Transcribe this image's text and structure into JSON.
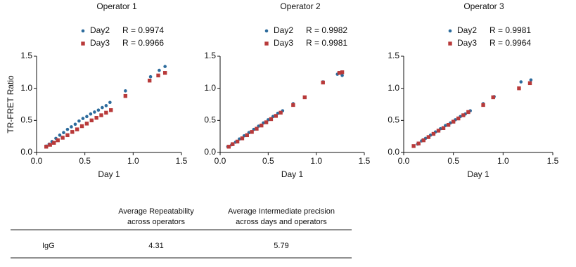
{
  "chart_data": [
    {
      "type": "scatter",
      "title": "Operator 1",
      "xlabel": "Day 1",
      "ylabel": "TR-FRET Ratio",
      "xlim": [
        0,
        1.5
      ],
      "ylim": [
        0,
        1.5
      ],
      "xticks": [
        {
          "value": 0,
          "label": "0.0"
        },
        {
          "value": 0.5,
          "label": "0.5"
        },
        {
          "value": 1,
          "label": "1.0"
        },
        {
          "value": 1.5,
          "label": "1.5"
        }
      ],
      "yticks": [
        {
          "value": 0,
          "label": "0.0"
        },
        {
          "value": 0.5,
          "label": "0.5"
        },
        {
          "value": 1,
          "label": "1.0"
        },
        {
          "value": 1.5,
          "label": "1.5"
        }
      ],
      "series": [
        {
          "name": "Day2",
          "annotation": "R = 0.9974",
          "color": "#2c6b9c",
          "marker": "circle",
          "x": [
            0.1,
            0.13,
            0.16,
            0.2,
            0.24,
            0.28,
            0.32,
            0.36,
            0.4,
            0.44,
            0.48,
            0.52,
            0.56,
            0.6,
            0.64,
            0.68,
            0.72,
            0.76,
            0.92,
            1.18,
            1.27,
            1.33
          ],
          "values": [
            0.1,
            0.13,
            0.17,
            0.22,
            0.27,
            0.31,
            0.36,
            0.4,
            0.44,
            0.49,
            0.53,
            0.56,
            0.6,
            0.63,
            0.66,
            0.7,
            0.73,
            0.78,
            0.96,
            1.18,
            1.28,
            1.34
          ]
        },
        {
          "name": "Day3",
          "annotation": "R = 0.9966",
          "color": "#b83a3a",
          "marker": "square",
          "x": [
            0.1,
            0.14,
            0.18,
            0.22,
            0.27,
            0.32,
            0.37,
            0.42,
            0.47,
            0.52,
            0.57,
            0.62,
            0.67,
            0.72,
            0.77,
            0.92,
            1.17,
            1.26,
            1.33
          ],
          "values": [
            0.09,
            0.12,
            0.15,
            0.19,
            0.23,
            0.27,
            0.32,
            0.36,
            0.41,
            0.45,
            0.5,
            0.54,
            0.58,
            0.62,
            0.66,
            0.88,
            1.12,
            1.2,
            1.24
          ]
        }
      ]
    },
    {
      "type": "scatter",
      "title": "Operator 2",
      "xlabel": "Day 1",
      "xlim": [
        0,
        1.5
      ],
      "ylim": [
        0,
        1.5
      ],
      "xticks": [
        {
          "value": 0,
          "label": "0.0"
        },
        {
          "value": 0.5,
          "label": "0.5"
        },
        {
          "value": 1,
          "label": "1.0"
        },
        {
          "value": 1.5,
          "label": "1.5"
        }
      ],
      "yticks": [
        {
          "value": 0,
          "label": "0.0"
        },
        {
          "value": 0.5,
          "label": "0.5"
        },
        {
          "value": 1,
          "label": "1.0"
        },
        {
          "value": 1.5,
          "label": "1.5"
        }
      ],
      "series": [
        {
          "name": "Day2",
          "annotation": "R = 0.9982",
          "color": "#2c6b9c",
          "marker": "circle",
          "x": [
            0.08,
            0.12,
            0.16,
            0.2,
            0.25,
            0.3,
            0.35,
            0.4,
            0.45,
            0.5,
            0.55,
            0.6,
            0.65,
            0.76,
            0.88,
            1.07,
            1.22,
            1.27
          ],
          "values": [
            0.09,
            0.12,
            0.16,
            0.21,
            0.26,
            0.31,
            0.36,
            0.41,
            0.46,
            0.51,
            0.56,
            0.61,
            0.65,
            0.76,
            0.86,
            1.1,
            1.22,
            1.2
          ]
        },
        {
          "name": "Day3",
          "annotation": "R = 0.9981",
          "color": "#b83a3a",
          "marker": "square",
          "x": [
            0.09,
            0.13,
            0.18,
            0.23,
            0.28,
            0.33,
            0.38,
            0.43,
            0.48,
            0.53,
            0.58,
            0.63,
            0.76,
            0.88,
            1.07,
            1.24,
            1.27
          ],
          "values": [
            0.09,
            0.13,
            0.17,
            0.22,
            0.27,
            0.32,
            0.37,
            0.42,
            0.47,
            0.52,
            0.57,
            0.62,
            0.74,
            0.86,
            1.09,
            1.24,
            1.25
          ]
        }
      ]
    },
    {
      "type": "scatter",
      "title": "Operator 3",
      "xlabel": "Day 1",
      "xlim": [
        0,
        1.5
      ],
      "ylim": [
        0,
        1.5
      ],
      "xticks": [
        {
          "value": 0,
          "label": "0.0"
        },
        {
          "value": 0.5,
          "label": "0.5"
        },
        {
          "value": 1,
          "label": "1.0"
        },
        {
          "value": 1.5,
          "label": "1.5"
        }
      ],
      "yticks": [
        {
          "value": 0,
          "label": "0.0"
        },
        {
          "value": 0.5,
          "label": "0.5"
        },
        {
          "value": 1,
          "label": "1.0"
        },
        {
          "value": 1.5,
          "label": "1.5"
        }
      ],
      "series": [
        {
          "name": "Day2",
          "annotation": "R = 0.9981",
          "color": "#2c6b9c",
          "marker": "circle",
          "x": [
            0.1,
            0.14,
            0.18,
            0.22,
            0.27,
            0.32,
            0.37,
            0.42,
            0.47,
            0.52,
            0.57,
            0.62,
            0.67,
            0.8,
            0.91,
            1.18,
            1.28
          ],
          "values": [
            0.1,
            0.13,
            0.18,
            0.22,
            0.27,
            0.32,
            0.37,
            0.42,
            0.46,
            0.51,
            0.56,
            0.6,
            0.65,
            0.76,
            0.87,
            1.1,
            1.13
          ]
        },
        {
          "name": "Day3",
          "annotation": "R = 0.9964",
          "color": "#b83a3a",
          "marker": "square",
          "x": [
            0.1,
            0.15,
            0.2,
            0.25,
            0.3,
            0.35,
            0.4,
            0.45,
            0.5,
            0.55,
            0.6,
            0.65,
            0.8,
            0.9,
            1.16,
            1.27
          ],
          "values": [
            0.1,
            0.14,
            0.19,
            0.24,
            0.29,
            0.34,
            0.38,
            0.43,
            0.48,
            0.53,
            0.58,
            0.63,
            0.74,
            0.86,
            1.0,
            1.08
          ]
        }
      ]
    }
  ],
  "table": {
    "columns": [
      "Average Repeatability across operators",
      "Average Intermediate precision across days and operators"
    ],
    "rows": [
      [
        "IgG",
        4.31,
        5.79
      ]
    ]
  }
}
